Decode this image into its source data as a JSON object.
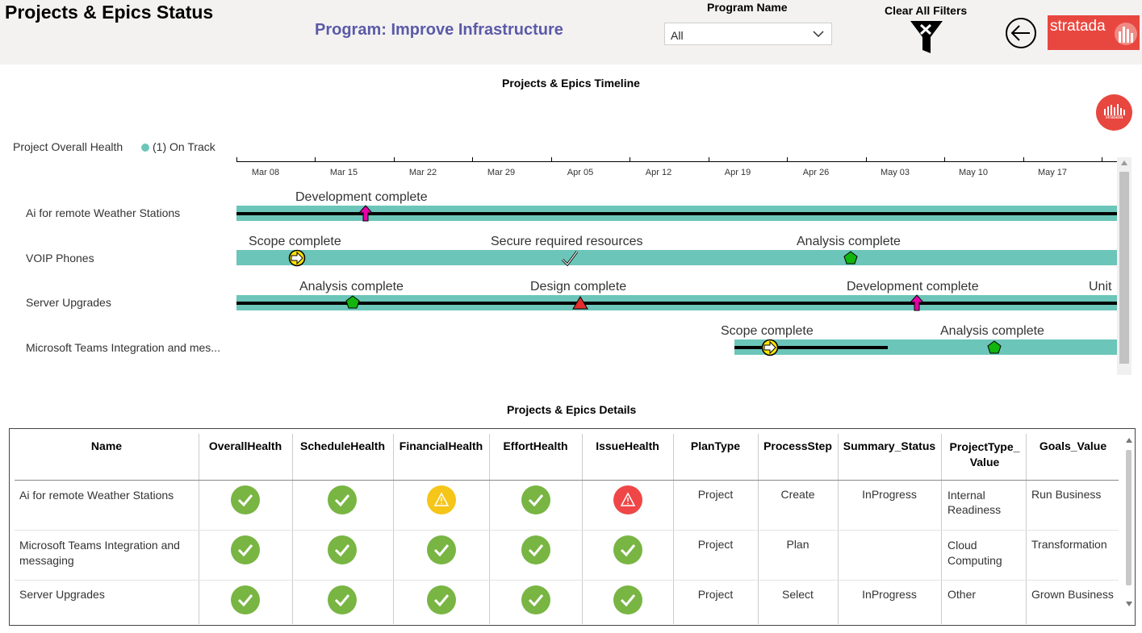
{
  "header": {
    "page_title": "Projects & Epics Status",
    "program_title": "Program: Improve Infrastructure",
    "slicer_label": "Program Name",
    "slicer_value": "All",
    "clear_filters_label": "Clear All Filters",
    "logo_text": "stratada",
    "brand_color": "#e8473f"
  },
  "timeline": {
    "title": "Projects & Epics Timeline",
    "badge_text": "stratada",
    "legend_title": "Project Overall Health",
    "legend_item": "(1) On Track",
    "track_color": "#6cc5b9",
    "axis_ticks": [
      "Mar 08",
      "Mar 15",
      "Mar 22",
      "Mar 29",
      "Apr 05",
      "Apr 12",
      "Apr 19",
      "Apr 26",
      "May 03",
      "May 10",
      "May 17"
    ],
    "rows": [
      {
        "name": "Ai for remote Weather Stations",
        "milestones": [
          {
            "label": "Development complete",
            "shape": "magenta-arrow-up"
          }
        ]
      },
      {
        "name": "VOIP Phones",
        "milestones": [
          {
            "label": "Scope complete",
            "shape": "yellow-arrow-circle"
          },
          {
            "label": "Secure required resources",
            "shape": "checkmark"
          },
          {
            "label": "Analysis complete",
            "shape": "green-pentagon"
          }
        ]
      },
      {
        "name": "Server Upgrades",
        "milestones": [
          {
            "label": "Analysis complete",
            "shape": "green-pentagon"
          },
          {
            "label": "Design complete",
            "shape": "red-triangle"
          },
          {
            "label": "Development complete",
            "shape": "magenta-arrow-up"
          },
          {
            "label": "Unit",
            "shape": "none"
          }
        ]
      },
      {
        "name": "Microsoft Teams Integration and mes...",
        "milestones": [
          {
            "label": "Scope complete",
            "shape": "yellow-arrow-circle"
          },
          {
            "label": "Analysis complete",
            "shape": "green-pentagon"
          }
        ]
      }
    ]
  },
  "details": {
    "title": "Projects & Epics Details",
    "columns": [
      "Name",
      "OverallHealth",
      "ScheduleHealth",
      "FinancialHealth",
      "EffortHealth",
      "IssueHealth",
      "PlanType",
      "ProcessStep",
      "Summary_Status",
      "ProjectType_ Value",
      "Goals_Value"
    ],
    "rows": [
      {
        "name": "Ai for remote Weather Stations",
        "health": [
          "green-check",
          "green-check",
          "yellow-warning",
          "green-check",
          "red-warning"
        ],
        "plan_type": "Project",
        "process_step": "Create",
        "summary_status": "InProgress",
        "project_type": "Internal Readiness",
        "goals": "Run Business"
      },
      {
        "name": "Microsoft Teams Integration and messaging",
        "health": [
          "green-check",
          "green-check",
          "green-check",
          "green-check",
          "green-check"
        ],
        "plan_type": "Project",
        "process_step": "Plan",
        "summary_status": "",
        "project_type": "Cloud Computing",
        "goals": "Transformation"
      },
      {
        "name": "Server Upgrades",
        "health": [
          "green-check",
          "green-check",
          "green-check",
          "green-check",
          "green-check"
        ],
        "plan_type": "Project",
        "process_step": "Select",
        "summary_status": "InProgress",
        "project_type": "Other",
        "goals": "Grown Business"
      }
    ]
  }
}
